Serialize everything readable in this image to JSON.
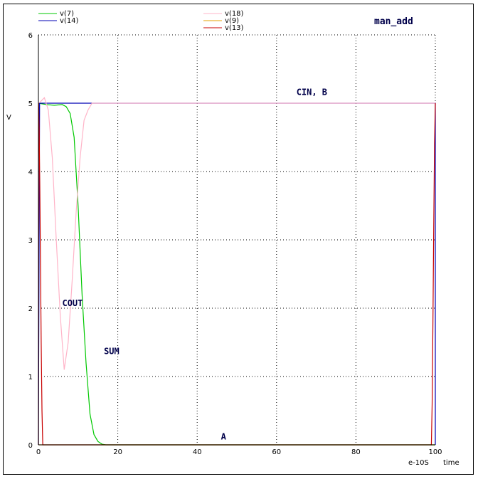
{
  "chart_data": {
    "type": "line",
    "title": "man_add",
    "ylabel": "V",
    "xlabel": "time",
    "x_unit": "e-10S",
    "xlim": [
      0,
      100
    ],
    "ylim": [
      0,
      6
    ],
    "x_ticks": [
      0,
      20,
      40,
      60,
      80,
      100
    ],
    "y_ticks": [
      0,
      1,
      2,
      3,
      4,
      5,
      6
    ],
    "grid": true,
    "legend_position": "top",
    "series": [
      {
        "name": "v(7)",
        "color": "#00c800",
        "x": [
          0,
          2,
          4,
          6,
          7,
          8,
          9,
          10,
          11,
          12,
          13,
          14,
          15,
          16,
          17,
          18,
          19,
          20,
          100
        ],
        "y": [
          5.0,
          4.98,
          4.97,
          4.98,
          4.95,
          4.85,
          4.5,
          3.5,
          2.2,
          1.2,
          0.45,
          0.15,
          0.05,
          0.01,
          0,
          0,
          0,
          0,
          0
        ]
      },
      {
        "name": "v(14)",
        "color": "#0000b4",
        "x": [
          0,
          0.3,
          100,
          100
        ],
        "y": [
          0,
          5.0,
          5.0,
          0
        ]
      },
      {
        "name": "v(18)",
        "color": "#ffb4c8",
        "x": [
          0,
          0.5,
          1.5,
          2.5,
          3.5,
          4.5,
          5.5,
          6.5,
          7.5,
          8.5,
          9.5,
          10.5,
          11.5,
          12.5,
          13.5,
          14.5,
          100
        ],
        "y": [
          5.0,
          5.02,
          5.08,
          4.9,
          4.2,
          3.0,
          1.9,
          1.1,
          1.5,
          2.4,
          3.4,
          4.2,
          4.75,
          4.9,
          5.0,
          5.0,
          5.0
        ]
      },
      {
        "name": "v(9)",
        "color": "#e6a000",
        "x": [
          0,
          100
        ],
        "y": [
          0,
          0
        ]
      },
      {
        "name": "v(13)",
        "color": "#c80000",
        "x": [
          0,
          0.05,
          0.2,
          0.35,
          0.5,
          0.7,
          0.9,
          1.1,
          99.0,
          99.2,
          99.4,
          99.6,
          99.8,
          100.0
        ],
        "y": [
          0,
          5.0,
          4.6,
          3.8,
          2.8,
          1.5,
          0.5,
          0,
          0,
          0.6,
          1.8,
          3.2,
          4.4,
          5.0
        ]
      }
    ],
    "annotations": [
      {
        "text": "CIN, B",
        "x": 65,
        "y": 5.12
      },
      {
        "text": "COUT",
        "x": 6,
        "y": 2.03
      },
      {
        "text": "SUM",
        "x": 16.5,
        "y": 1.33
      },
      {
        "text": "A",
        "x": 46,
        "y": 0.08
      }
    ]
  }
}
